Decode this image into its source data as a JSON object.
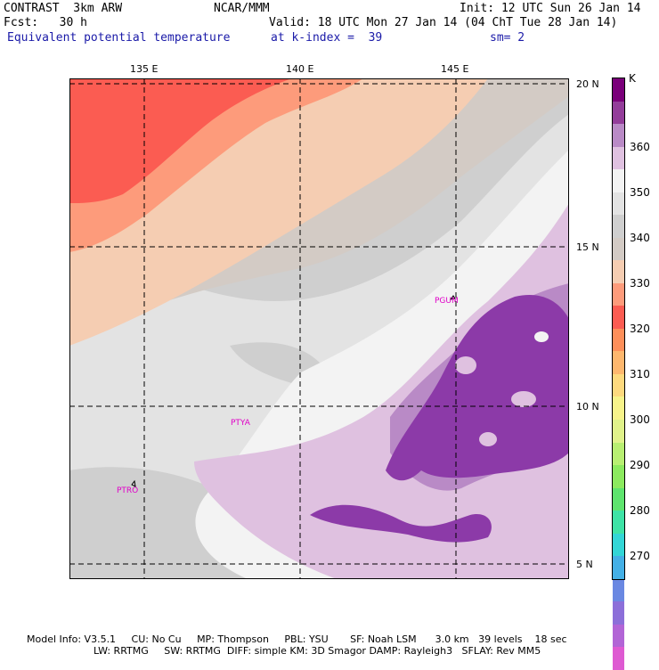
{
  "header": {
    "left1": "CONTRAST  3km ARW",
    "left2": "Fcst:   30 h",
    "center1": "NCAR/MMM",
    "init": "Init: 12 UTC Sun 26 Jan 14",
    "valid": "Valid: 18 UTC Mon 27 Jan 14 (04 ChT Tue 28 Jan 14)",
    "field": "Equivalent potential temperature",
    "level": "at k-index =  39",
    "smooth": "sm= 2"
  },
  "map": {
    "lon_ticks": [
      "135 E",
      "140 E",
      "145 E"
    ],
    "lat_ticks": [
      "20 N",
      "15 N",
      "10 N",
      "5 N"
    ],
    "stations": [
      "PGUM",
      "PTYA",
      "PTRO"
    ],
    "colors": {
      "c330": "#fb5c52",
      "c335": "#fd9b7b",
      "c340": "#f5cdb2",
      "c345": "#d3cbc5",
      "c350": "#cfcfcf",
      "c355": "#e3e3e3",
      "c360": "#f3f3f3",
      "c365": "#dfc1e0",
      "c370": "#b98ac6",
      "c375": "#8c3aa8"
    }
  },
  "colorbar": {
    "unit": "K",
    "labels": [
      "360",
      "350",
      "340",
      "330",
      "320",
      "310",
      "300",
      "290",
      "280",
      "270"
    ],
    "colors": [
      "#7a007a",
      "#933d9a",
      "#b98ac6",
      "#dfc1e0",
      "#f3f3f3",
      "#e3e3e3",
      "#cfcfcf",
      "#d3cbc5",
      "#f5cdb2",
      "#fd9b7b",
      "#fb5c52",
      "#fd8f5a",
      "#fdb76e",
      "#fdd97e",
      "#f7f38a",
      "#e0f28a",
      "#b8ef72",
      "#8cea5f",
      "#5ee46e",
      "#3ee3a6",
      "#33d6d6",
      "#44b0e6",
      "#6a88e2",
      "#8c6fd9",
      "#b265d6",
      "#de5ad2"
    ]
  },
  "footer": {
    "line1": "Model Info: V3.5.1     CU: No Cu     MP: Thompson     PBL: YSU       SF: Noah LSM      3.0 km   39 levels    18 sec",
    "line2": "LW: RRTMG     SW: RRTMG  DIFF: simple KM: 3D Smagor DAMP: Rayleigh3   SFLAY: Rev MM5"
  }
}
